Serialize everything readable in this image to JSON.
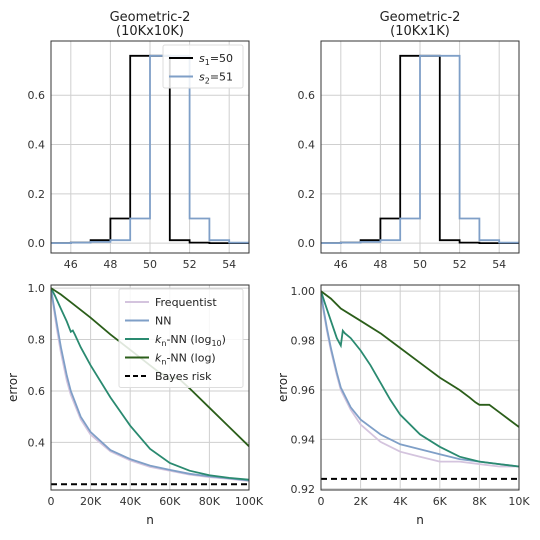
{
  "chart_data": [
    {
      "id": "hist-left",
      "type": "line",
      "subtype": "step-histogram",
      "title_lines": [
        "Geometric-2",
        "(10Kx10K)"
      ],
      "xlim": [
        45,
        55
      ],
      "ylim": [
        -0.04,
        0.82
      ],
      "xticks": [
        46,
        48,
        50,
        52,
        54
      ],
      "yticks": [
        0.0,
        0.2,
        0.4,
        0.6
      ],
      "ytick_labels": [
        "0.0",
        "0.2",
        "0.4",
        "0.6"
      ],
      "grid": true,
      "legend": {
        "placement": "top-right",
        "entries": [
          {
            "pre": "s",
            "sub": "1",
            "post": "=50",
            "color": "#000000"
          },
          {
            "pre": "s",
            "sub": "2",
            "post": "=51",
            "color": "#7f9fc7"
          }
        ]
      },
      "series": [
        {
          "name": "s1=50",
          "color": "#000000",
          "edges": [
            44,
            46,
            47,
            48,
            49,
            51,
            52,
            53,
            54,
            56
          ],
          "values": [
            0.0,
            0.002,
            0.012,
            0.1,
            0.76,
            0.012,
            0.002,
            0.0,
            0.0
          ]
        },
        {
          "name": "s2=51",
          "color": "#7f9fc7",
          "edges": [
            44,
            46,
            47,
            48,
            49,
            50,
            52,
            53,
            54,
            56
          ],
          "values": [
            0.0,
            0.002,
            0.005,
            0.012,
            0.1,
            0.76,
            0.1,
            0.012,
            0.002
          ]
        }
      ]
    },
    {
      "id": "hist-right",
      "type": "line",
      "subtype": "step-histogram",
      "title_lines": [
        "Geometric-2",
        "(10Kx1K)"
      ],
      "xlim": [
        45,
        55
      ],
      "ylim": [
        -0.04,
        0.82
      ],
      "xticks": [
        46,
        48,
        50,
        52,
        54
      ],
      "yticks": [
        0.0,
        0.2,
        0.4,
        0.6
      ],
      "ytick_labels": [
        "0.0",
        "0.2",
        "0.4",
        "0.6"
      ],
      "grid": true,
      "series": [
        {
          "name": "s1=50",
          "color": "#000000",
          "edges": [
            44,
            46,
            47,
            48,
            49,
            51,
            52,
            53,
            54,
            56
          ],
          "values": [
            0.0,
            0.002,
            0.012,
            0.1,
            0.76,
            0.012,
            0.002,
            0.0,
            0.0
          ]
        },
        {
          "name": "s2=51",
          "color": "#7f9fc7",
          "edges": [
            44,
            46,
            47,
            48,
            49,
            50,
            52,
            53,
            54,
            56
          ],
          "values": [
            0.0,
            0.002,
            0.005,
            0.012,
            0.1,
            0.76,
            0.1,
            0.012,
            0.002
          ]
        }
      ]
    },
    {
      "id": "error-left",
      "type": "line",
      "xlabel": "n",
      "ylabel": "error",
      "xlim": [
        0,
        100000
      ],
      "ylim": [
        0.215,
        1.012
      ],
      "xticks": [
        0,
        20000,
        40000,
        60000,
        80000,
        100000
      ],
      "xtick_labels": [
        "0",
        "20K",
        "40K",
        "60K",
        "80K",
        "100K"
      ],
      "yticks": [
        0.4,
        0.6,
        0.8,
        1.0
      ],
      "ytick_labels": [
        "0.4",
        "0.6",
        "0.8",
        "1.0"
      ],
      "grid": true,
      "legend": {
        "placement": "top-right",
        "entries": [
          {
            "pre": "Frequentist",
            "color": "#d4c4de",
            "dashed": false
          },
          {
            "pre": "NN",
            "color": "#7f9fc7",
            "dashed": false
          },
          {
            "pre": "k",
            "sub": "n",
            "post": "-NN (log",
            "sub2": "10",
            "post2": ")",
            "color": "#2a8a70",
            "dashed": false
          },
          {
            "pre": "k",
            "sub": "n",
            "post": "-NN (log)",
            "color": "#2b5e1a",
            "dashed": false
          },
          {
            "pre": "Bayes risk",
            "color": "#000000",
            "dashed": true
          }
        ]
      },
      "series": [
        {
          "name": "Frequentist",
          "color": "#d4c4de",
          "x": [
            0,
            1000,
            3000,
            5000,
            8000,
            10000,
            15000,
            20000,
            30000,
            40000,
            50000,
            60000,
            70000,
            80000,
            90000,
            100000
          ],
          "y": [
            1.0,
            0.94,
            0.84,
            0.75,
            0.64,
            0.585,
            0.49,
            0.43,
            0.365,
            0.33,
            0.305,
            0.29,
            0.275,
            0.265,
            0.258,
            0.25
          ]
        },
        {
          "name": "NN",
          "color": "#7f9fc7",
          "x": [
            0,
            1000,
            3000,
            5000,
            8000,
            10000,
            15000,
            20000,
            30000,
            40000,
            50000,
            60000,
            70000,
            80000,
            90000,
            100000
          ],
          "y": [
            1.0,
            0.95,
            0.86,
            0.77,
            0.66,
            0.6,
            0.5,
            0.44,
            0.37,
            0.335,
            0.31,
            0.293,
            0.278,
            0.268,
            0.26,
            0.252
          ]
        },
        {
          "name": "kn-NN (log10)",
          "color": "#2a8a70",
          "x": [
            0,
            2000,
            5000,
            8000,
            10000,
            11000,
            12000,
            15000,
            20000,
            30000,
            40000,
            50000,
            60000,
            70000,
            80000,
            90000,
            100000
          ],
          "y": [
            1.0,
            0.97,
            0.92,
            0.87,
            0.83,
            0.835,
            0.82,
            0.77,
            0.7,
            0.575,
            0.465,
            0.375,
            0.32,
            0.29,
            0.272,
            0.262,
            0.255
          ]
        },
        {
          "name": "kn-NN (log)",
          "color": "#2b5e1a",
          "x": [
            0,
            5000,
            10000,
            20000,
            30000,
            40000,
            50000,
            55000,
            58000,
            60000,
            62000,
            65000,
            70000,
            80000,
            90000,
            100000
          ],
          "y": [
            1.0,
            0.975,
            0.945,
            0.885,
            0.82,
            0.76,
            0.7,
            0.67,
            0.66,
            0.645,
            0.652,
            0.645,
            0.61,
            0.535,
            0.46,
            0.385
          ]
        },
        {
          "name": "Bayes risk",
          "color": "#000000",
          "dashed": true,
          "x": [
            0,
            100000
          ],
          "y": [
            0.237,
            0.237
          ]
        }
      ]
    },
    {
      "id": "error-right",
      "type": "line",
      "xlabel": "n",
      "ylabel": "error",
      "xlim": [
        0,
        10000
      ],
      "ylim": [
        0.9195,
        1.0025
      ],
      "xticks": [
        0,
        2000,
        4000,
        6000,
        8000,
        10000
      ],
      "xtick_labels": [
        "0",
        "2K",
        "4K",
        "6K",
        "8K",
        "10K"
      ],
      "yticks": [
        0.92,
        0.94,
        0.96,
        0.98,
        1.0
      ],
      "ytick_labels": [
        "0.92",
        "0.94",
        "0.96",
        "0.98",
        "1.00"
      ],
      "grid": true,
      "series": [
        {
          "name": "Frequentist",
          "color": "#d4c4de",
          "x": [
            0,
            100,
            300,
            500,
            800,
            1000,
            1500,
            2000,
            3000,
            4000,
            5000,
            6000,
            7000,
            8000,
            9000,
            10000
          ],
          "y": [
            1.0,
            0.993,
            0.984,
            0.976,
            0.966,
            0.96,
            0.952,
            0.946,
            0.939,
            0.935,
            0.933,
            0.931,
            0.931,
            0.93,
            0.929,
            0.929
          ]
        },
        {
          "name": "NN",
          "color": "#7f9fc7",
          "x": [
            0,
            100,
            300,
            500,
            800,
            1000,
            1500,
            2000,
            3000,
            4000,
            5000,
            6000,
            7000,
            8000,
            9000,
            10000
          ],
          "y": [
            1.0,
            0.994,
            0.985,
            0.977,
            0.967,
            0.961,
            0.953,
            0.948,
            0.942,
            0.938,
            0.936,
            0.934,
            0.932,
            0.931,
            0.93,
            0.929
          ]
        },
        {
          "name": "kn-NN (log10)",
          "color": "#2a8a70",
          "x": [
            0,
            200,
            500,
            800,
            1000,
            1100,
            1200,
            1500,
            2000,
            2500,
            3000,
            3500,
            4000,
            5000,
            6000,
            7000,
            8000,
            9000,
            10000
          ],
          "y": [
            1.0,
            0.995,
            0.988,
            0.981,
            0.978,
            0.984,
            0.983,
            0.981,
            0.976,
            0.97,
            0.963,
            0.956,
            0.95,
            0.942,
            0.937,
            0.933,
            0.931,
            0.93,
            0.929
          ]
        },
        {
          "name": "kn-NN (log)",
          "color": "#2b5e1a",
          "x": [
            0,
            500,
            1000,
            2000,
            3000,
            4000,
            5000,
            6000,
            7000,
            7500,
            7800,
            8000,
            8500,
            9000,
            9500,
            10000
          ],
          "y": [
            1.0,
            0.997,
            0.993,
            0.988,
            0.983,
            0.977,
            0.971,
            0.965,
            0.96,
            0.957,
            0.955,
            0.954,
            0.954,
            0.951,
            0.948,
            0.945
          ]
        },
        {
          "name": "Bayes risk",
          "color": "#000000",
          "dashed": true,
          "x": [
            0,
            10000
          ],
          "y": [
            0.924,
            0.924
          ]
        }
      ]
    }
  ]
}
